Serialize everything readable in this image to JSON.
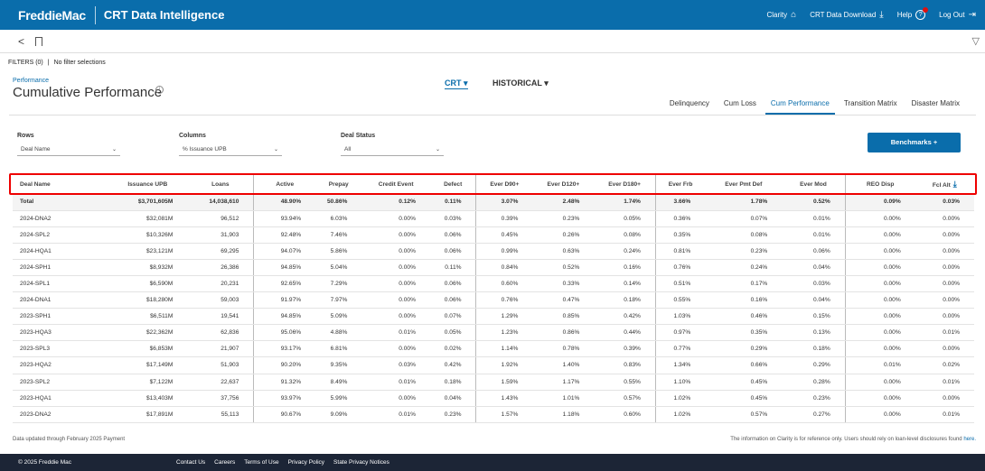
{
  "header": {
    "brand": "FreddieMac",
    "app_title": "CRT Data Intelligence",
    "nav": {
      "clarity": "Clarity",
      "download": "CRT Data Download",
      "help": "Help",
      "logout": "Log Out"
    }
  },
  "filters": {
    "label": "FILTERS (0)",
    "value": "No filter selections"
  },
  "page": {
    "section": "Performance",
    "title": "Cumulative Performance"
  },
  "modes": {
    "crt": "CRT",
    "historical": "HISTORICAL"
  },
  "tabs": [
    "Delinquency",
    "Cum Loss",
    "Cum Performance",
    "Transition Matrix",
    "Disaster Matrix"
  ],
  "active_tab": "Cum Performance",
  "controls": {
    "rows_label": "Rows",
    "rows_value": "Deal Name",
    "columns_label": "Columns",
    "columns_value": "% Issuance UPB",
    "status_label": "Deal Status",
    "status_value": "All",
    "benchmarks_button": "Benchmarks +"
  },
  "table": {
    "columns": [
      "Deal Name",
      "Issuance UPB",
      "Loans",
      "Active",
      "Prepay",
      "Credit Event",
      "Defect",
      "Ever D90+",
      "Ever D120+",
      "Ever D180+",
      "Ever Frb",
      "Ever Pmt Def",
      "Ever Mod",
      "REO Disp",
      "Fcl Alt"
    ],
    "rows": [
      [
        "Total",
        "$3,701,605M",
        "14,038,610",
        "48.90%",
        "50.86%",
        "0.12%",
        "0.11%",
        "3.07%",
        "2.48%",
        "1.74%",
        "3.66%",
        "1.78%",
        "0.52%",
        "0.09%",
        "0.03%"
      ],
      [
        "2024-DNA2",
        "$32,081M",
        "96,512",
        "93.94%",
        "6.03%",
        "0.00%",
        "0.03%",
        "0.39%",
        "0.23%",
        "0.05%",
        "0.36%",
        "0.07%",
        "0.01%",
        "0.00%",
        "0.00%"
      ],
      [
        "2024-SPL2",
        "$10,326M",
        "31,903",
        "92.48%",
        "7.46%",
        "0.00%",
        "0.06%",
        "0.45%",
        "0.26%",
        "0.08%",
        "0.35%",
        "0.08%",
        "0.01%",
        "0.00%",
        "0.00%"
      ],
      [
        "2024-HQA1",
        "$23,121M",
        "69,295",
        "94.07%",
        "5.86%",
        "0.00%",
        "0.06%",
        "0.99%",
        "0.63%",
        "0.24%",
        "0.81%",
        "0.23%",
        "0.06%",
        "0.00%",
        "0.00%"
      ],
      [
        "2024-SPH1",
        "$8,932M",
        "26,386",
        "94.85%",
        "5.04%",
        "0.00%",
        "0.11%",
        "0.84%",
        "0.52%",
        "0.16%",
        "0.76%",
        "0.24%",
        "0.04%",
        "0.00%",
        "0.00%"
      ],
      [
        "2024-SPL1",
        "$6,590M",
        "20,231",
        "92.65%",
        "7.29%",
        "0.00%",
        "0.06%",
        "0.60%",
        "0.33%",
        "0.14%",
        "0.51%",
        "0.17%",
        "0.03%",
        "0.00%",
        "0.00%"
      ],
      [
        "2024-DNA1",
        "$18,280M",
        "59,003",
        "91.97%",
        "7.97%",
        "0.00%",
        "0.06%",
        "0.76%",
        "0.47%",
        "0.18%",
        "0.55%",
        "0.16%",
        "0.04%",
        "0.00%",
        "0.00%"
      ],
      [
        "2023-SPH1",
        "$6,511M",
        "19,541",
        "94.85%",
        "5.09%",
        "0.00%",
        "0.07%",
        "1.29%",
        "0.85%",
        "0.42%",
        "1.03%",
        "0.46%",
        "0.15%",
        "0.00%",
        "0.00%"
      ],
      [
        "2023-HQA3",
        "$22,362M",
        "62,836",
        "95.06%",
        "4.88%",
        "0.01%",
        "0.05%",
        "1.23%",
        "0.86%",
        "0.44%",
        "0.97%",
        "0.35%",
        "0.13%",
        "0.00%",
        "0.01%"
      ],
      [
        "2023-SPL3",
        "$6,853M",
        "21,907",
        "93.17%",
        "6.81%",
        "0.00%",
        "0.02%",
        "1.14%",
        "0.78%",
        "0.39%",
        "0.77%",
        "0.29%",
        "0.18%",
        "0.00%",
        "0.00%"
      ],
      [
        "2023-HQA2",
        "$17,149M",
        "51,903",
        "90.20%",
        "9.35%",
        "0.03%",
        "0.42%",
        "1.92%",
        "1.40%",
        "0.83%",
        "1.34%",
        "0.66%",
        "0.29%",
        "0.01%",
        "0.02%"
      ],
      [
        "2023-SPL2",
        "$7,122M",
        "22,637",
        "91.32%",
        "8.49%",
        "0.01%",
        "0.18%",
        "1.59%",
        "1.17%",
        "0.55%",
        "1.10%",
        "0.45%",
        "0.28%",
        "0.00%",
        "0.01%"
      ],
      [
        "2023-HQA1",
        "$13,403M",
        "37,756",
        "93.97%",
        "5.99%",
        "0.00%",
        "0.04%",
        "1.43%",
        "1.01%",
        "0.57%",
        "1.02%",
        "0.45%",
        "0.23%",
        "0.00%",
        "0.00%"
      ],
      [
        "2023-DNA2",
        "$17,891M",
        "55,113",
        "90.67%",
        "9.09%",
        "0.01%",
        "0.23%",
        "1.57%",
        "1.18%",
        "0.60%",
        "1.02%",
        "0.57%",
        "0.27%",
        "0.00%",
        "0.01%"
      ]
    ]
  },
  "footnotes": {
    "left": "Data updated through February 2025 Payment",
    "right": "The information on Clarity is for reference only. Users should rely on loan-level disclosures found",
    "right_link": "here."
  },
  "footer": {
    "copyright": "© 2025 Freddie Mac",
    "links": [
      "Contact Us",
      "Careers",
      "Terms of Use",
      "Privacy Policy",
      "State Privacy Notices"
    ]
  },
  "colors": {
    "primary": "#0a6dab",
    "highlight_outline": "#e00000",
    "footer_bg": "#1c2536"
  },
  "icons": [
    "home-icon",
    "download-icon",
    "help-icon",
    "logout-icon",
    "back-icon",
    "bookmark-icon",
    "filter-icon",
    "info-icon",
    "sort-desc-icon",
    "chevron-down-icon"
  ]
}
